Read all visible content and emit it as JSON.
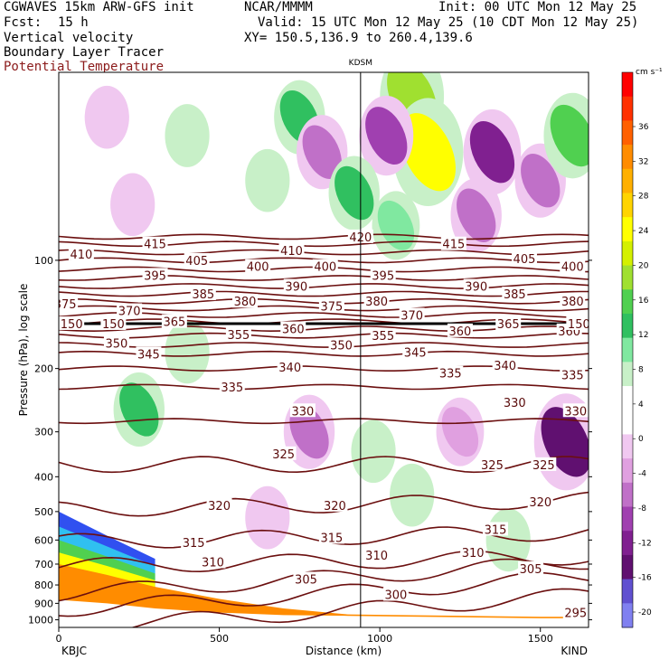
{
  "header": {
    "model": "CGWAVES 15km ARW-GFS init",
    "org": "NCAR/MMMM",
    "init": "Init: 00 UTC Mon 12 May 25",
    "fcst_label": "Fcst:",
    "fcst_value": "15 h",
    "valid": "Valid: 15 UTC Mon 12 May 25 (10 CDT Mon 12 May 25)",
    "field1": "Vertical velocity",
    "xy": "XY= 150.5,136.9 to 260.4,139.6",
    "field2": "Boundary Layer Tracer",
    "field3": "Potential Temperature"
  },
  "colors": {
    "theta_line": "#6b0f0f",
    "field3_text": "#8b1a1a",
    "terrain": "#ff8c00",
    "tropopause": "#000000"
  },
  "chart_data": {
    "type": "heatmap",
    "title": "",
    "station_label": "KDSM",
    "xlabel": "Distance (km)",
    "ylabel": "Pressure (hPa), log scale",
    "x_ticks": [
      0,
      500,
      1000,
      1500
    ],
    "x_tick_labels": [
      "0",
      "500",
      "1000",
      "1500"
    ],
    "xlim": [
      0,
      1650
    ],
    "x_endpoints": {
      "left": "KBJC",
      "right": "KIND"
    },
    "y_ticks": [
      100,
      200,
      300,
      400,
      500,
      600,
      700,
      800,
      900,
      1000
    ],
    "y_tick_labels": [
      "100",
      "200",
      "300",
      "400",
      "500",
      "600",
      "700",
      "800",
      "900",
      "1000"
    ],
    "y_scale": "log",
    "ylim": [
      1050,
      30
    ],
    "station_x_km": 940,
    "colorbar": {
      "unit": "cm s⁻¹",
      "tick_labels": [
        "36",
        "32",
        "28",
        "24",
        "20",
        "16",
        "12",
        "8",
        "4",
        "0",
        "-4",
        "-8",
        "-12",
        "-16",
        "-20"
      ],
      "colors": [
        "#ff0000",
        "#ff3000",
        "#ff6000",
        "#ff8c00",
        "#ffb000",
        "#ffd400",
        "#ffff00",
        "#d4f000",
        "#a0e030",
        "#50d050",
        "#30c060",
        "#80e8a0",
        "#c8f0c8",
        "#ffffff",
        "#ffffff",
        "#f0c8f0",
        "#e0a0e0",
        "#c070c8",
        "#a040b0",
        "#802090",
        "#601070",
        "#6050d0",
        "#8080f0"
      ]
    },
    "theta_lines": [
      {
        "value": 295,
        "pressure": 955
      },
      {
        "value": 300,
        "pressure": 850
      },
      {
        "value": 305,
        "pressure": 770
      },
      {
        "value": 310,
        "pressure": 690
      },
      {
        "value": 315,
        "pressure": 590
      },
      {
        "value": 320,
        "pressure": 480
      },
      {
        "value": 325,
        "pressure": 370
      },
      {
        "value": 330,
        "pressure": 280
      },
      {
        "value": 335,
        "pressure": 225
      },
      {
        "value": 340,
        "pressure": 200
      },
      {
        "value": 345,
        "pressure": 182
      },
      {
        "value": 350,
        "pressure": 172
      },
      {
        "value": 355,
        "pressure": 162
      },
      {
        "value": 360,
        "pressure": 155
      },
      {
        "value": 365,
        "pressure": 148
      },
      {
        "value": 370,
        "pressure": 142
      },
      {
        "value": 375,
        "pressure": 136
      },
      {
        "value": 380,
        "pressure": 130
      },
      {
        "value": 385,
        "pressure": 124
      },
      {
        "value": 390,
        "pressure": 118
      },
      {
        "value": 395,
        "pressure": 112
      },
      {
        "value": 400,
        "pressure": 106
      },
      {
        "value": 405,
        "pressure": 100
      },
      {
        "value": 410,
        "pressure": 95
      },
      {
        "value": 415,
        "pressure": 90
      },
      {
        "value": 420,
        "pressure": 86
      }
    ],
    "theta_labels": [
      {
        "text": "420",
        "x_km": 940,
        "p": 86
      },
      {
        "text": "415",
        "x_km": 300,
        "p": 90
      },
      {
        "text": "415",
        "x_km": 1230,
        "p": 90
      },
      {
        "text": "410",
        "x_km": 70,
        "p": 96
      },
      {
        "text": "410",
        "x_km": 725,
        "p": 94
      },
      {
        "text": "405",
        "x_km": 430,
        "p": 100
      },
      {
        "text": "405",
        "x_km": 1450,
        "p": 99
      },
      {
        "text": "400",
        "x_km": 620,
        "p": 104
      },
      {
        "text": "400",
        "x_km": 830,
        "p": 104
      },
      {
        "text": "400",
        "x_km": 1600,
        "p": 104
      },
      {
        "text": "395",
        "x_km": 300,
        "p": 110
      },
      {
        "text": "395",
        "x_km": 1010,
        "p": 110
      },
      {
        "text": "390",
        "x_km": 740,
        "p": 118
      },
      {
        "text": "390",
        "x_km": 1300,
        "p": 118
      },
      {
        "text": "385",
        "x_km": 450,
        "p": 124
      },
      {
        "text": "385",
        "x_km": 1420,
        "p": 124
      },
      {
        "text": "380",
        "x_km": 580,
        "p": 130
      },
      {
        "text": "380",
        "x_km": 990,
        "p": 130
      },
      {
        "text": "380",
        "x_km": 1600,
        "p": 130
      },
      {
        "text": "375",
        "x_km": 20,
        "p": 132
      },
      {
        "text": "375",
        "x_km": 850,
        "p": 134
      },
      {
        "text": "370",
        "x_km": 220,
        "p": 138
      },
      {
        "text": "370",
        "x_km": 1100,
        "p": 142
      },
      {
        "text": "365",
        "x_km": 360,
        "p": 148
      },
      {
        "text": "365",
        "x_km": 1400,
        "p": 150
      },
      {
        "text": "360",
        "x_km": 730,
        "p": 155
      },
      {
        "text": "360",
        "x_km": 1250,
        "p": 157
      },
      {
        "text": "360",
        "x_km": 1590,
        "p": 157
      },
      {
        "text": "355",
        "x_km": 560,
        "p": 161
      },
      {
        "text": "355",
        "x_km": 1010,
        "p": 162
      },
      {
        "text": "350",
        "x_km": 180,
        "p": 170
      },
      {
        "text": "350",
        "x_km": 880,
        "p": 172
      },
      {
        "text": "345",
        "x_km": 280,
        "p": 182
      },
      {
        "text": "345",
        "x_km": 1110,
        "p": 180
      },
      {
        "text": "340",
        "x_km": 720,
        "p": 198
      },
      {
        "text": "340",
        "x_km": 1390,
        "p": 196
      },
      {
        "text": "335",
        "x_km": 540,
        "p": 225
      },
      {
        "text": "335",
        "x_km": 1220,
        "p": 206
      },
      {
        "text": "335",
        "x_km": 1600,
        "p": 208
      },
      {
        "text": "330",
        "x_km": 760,
        "p": 262
      },
      {
        "text": "330",
        "x_km": 1420,
        "p": 248
      },
      {
        "text": "330",
        "x_km": 1610,
        "p": 262
      },
      {
        "text": "325",
        "x_km": 700,
        "p": 345
      },
      {
        "text": "325",
        "x_km": 1350,
        "p": 370
      },
      {
        "text": "325",
        "x_km": 1510,
        "p": 370
      },
      {
        "text": "320",
        "x_km": 500,
        "p": 480
      },
      {
        "text": "320",
        "x_km": 860,
        "p": 480
      },
      {
        "text": "320",
        "x_km": 1500,
        "p": 470
      },
      {
        "text": "315",
        "x_km": 420,
        "p": 610
      },
      {
        "text": "315",
        "x_km": 850,
        "p": 590
      },
      {
        "text": "315",
        "x_km": 1360,
        "p": 560
      },
      {
        "text": "310",
        "x_km": 480,
        "p": 690
      },
      {
        "text": "310",
        "x_km": 990,
        "p": 660
      },
      {
        "text": "310",
        "x_km": 1290,
        "p": 650
      },
      {
        "text": "305",
        "x_km": 770,
        "p": 770
      },
      {
        "text": "305",
        "x_km": 1470,
        "p": 720
      },
      {
        "text": "300",
        "x_km": 1050,
        "p": 850
      },
      {
        "text": "295",
        "x_km": 1610,
        "p": 955
      },
      {
        "text": "150",
        "x_km": 40,
        "p": 150
      },
      {
        "text": "150",
        "x_km": 170,
        "p": 150
      },
      {
        "text": "150",
        "x_km": 1620,
        "p": 150
      }
    ],
    "w_blobs": [
      {
        "x_km": 150,
        "p": 40,
        "w": -4
      },
      {
        "x_km": 400,
        "p": 45,
        "w": 4
      },
      {
        "x_km": 750,
        "p": 40,
        "w": 8
      },
      {
        "x_km": 820,
        "p": 50,
        "w": -8
      },
      {
        "x_km": 1100,
        "p": 35,
        "w": 16
      },
      {
        "x_km": 1150,
        "p": 50,
        "w": 20
      },
      {
        "x_km": 1020,
        "p": 45,
        "w": -10
      },
      {
        "x_km": 1350,
        "p": 50,
        "w": -12
      },
      {
        "x_km": 1500,
        "p": 60,
        "w": -8
      },
      {
        "x_km": 1600,
        "p": 45,
        "w": 12
      },
      {
        "x_km": 650,
        "p": 60,
        "w": 4
      },
      {
        "x_km": 920,
        "p": 65,
        "w": 8
      },
      {
        "x_km": 230,
        "p": 70,
        "w": -4
      },
      {
        "x_km": 1300,
        "p": 75,
        "w": -8
      },
      {
        "x_km": 1050,
        "p": 80,
        "w": 6
      },
      {
        "x_km": 400,
        "p": 180,
        "w": 4
      },
      {
        "x_km": 780,
        "p": 300,
        "w": -8
      },
      {
        "x_km": 980,
        "p": 340,
        "w": 4
      },
      {
        "x_km": 1250,
        "p": 300,
        "w": -6
      },
      {
        "x_km": 1100,
        "p": 450,
        "w": 4
      },
      {
        "x_km": 650,
        "p": 520,
        "w": -4
      },
      {
        "x_km": 1400,
        "p": 600,
        "w": 4
      },
      {
        "x_km": 250,
        "p": 260,
        "w": 8
      },
      {
        "x_km": 1580,
        "p": 320,
        "w": -16
      }
    ],
    "terrain_pressure": [
      {
        "x_km": 0,
        "p": 880
      },
      {
        "x_km": 150,
        "p": 900
      },
      {
        "x_km": 300,
        "p": 930
      },
      {
        "x_km": 500,
        "p": 955
      },
      {
        "x_km": 700,
        "p": 970
      },
      {
        "x_km": 900,
        "p": 975
      },
      {
        "x_km": 1100,
        "p": 980
      },
      {
        "x_km": 1300,
        "p": 985
      },
      {
        "x_km": 1500,
        "p": 990
      },
      {
        "x_km": 1650,
        "p": 990
      }
    ],
    "tropopause_pressure": 150
  }
}
